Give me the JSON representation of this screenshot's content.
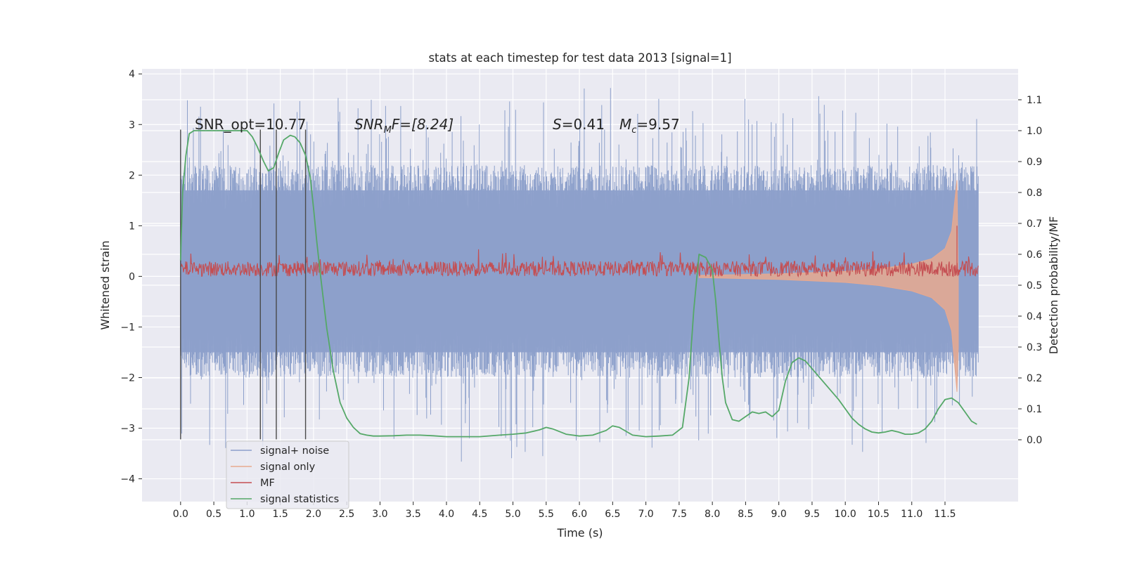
{
  "chart_data": {
    "type": "line",
    "title": "stats at each timestep for test data 2013 [signal=1]",
    "xlabel": "Time (s)",
    "ylabel_left": "Whitened strain",
    "ylabel_right": "Detection probability/MF",
    "xlim": [
      -0.58,
      12.6
    ],
    "ylim_left": [
      -4.45,
      4.1
    ],
    "ylim_right": [
      -0.2,
      1.2
    ],
    "x_ticks": [
      "0.0",
      "0.5",
      "1.0",
      "1.5",
      "2.0",
      "2.5",
      "3.0",
      "3.5",
      "4.0",
      "4.5",
      "5.0",
      "5.5",
      "6.0",
      "6.5",
      "7.0",
      "7.5",
      "8.0",
      "8.5",
      "9.0",
      "9.5",
      "10.0",
      "10.5",
      "11.0",
      "11.5"
    ],
    "y_ticks_left": [
      "−4",
      "−3",
      "−2",
      "−1",
      "0",
      "1",
      "2",
      "3",
      "4"
    ],
    "y_ticks_right": [
      "0.0",
      "0.1",
      "0.2",
      "0.3",
      "0.4",
      "0.5",
      "0.6",
      "0.7",
      "0.8",
      "0.9",
      "1.0",
      "1.1"
    ],
    "grid": true,
    "legend_position": "lower-left",
    "annotations": {
      "snr_opt": "SNR_opt=10.77",
      "snr_mf_prefix": "SNR",
      "snr_mf_sub": "M",
      "snr_mf_rest": "F=[8.24]",
      "s_sym": "S",
      "s_val": "=0.41",
      "mc_sym": "M",
      "mc_sub": "c",
      "mc_val": "=9.57"
    },
    "vertical_markers_x": [
      0.0,
      1.2,
      1.44,
      1.88
    ],
    "series": [
      {
        "name": "signal+ noise",
        "color": "#8da0cb",
        "axis": "left",
        "description_range": [
          -1.5,
          1.7
        ],
        "x_range": [
          0.0,
          12.0
        ]
      },
      {
        "name": "signal only",
        "color": "#e8a98f",
        "axis": "left",
        "x_range": [
          7.8,
          11.7
        ],
        "envelope": [
          [
            7.8,
            0.02
          ],
          [
            9.0,
            0.05
          ],
          [
            10.0,
            0.1
          ],
          [
            10.5,
            0.15
          ],
          [
            11.0,
            0.24
          ],
          [
            11.3,
            0.35
          ],
          [
            11.5,
            0.55
          ],
          [
            11.6,
            0.9
          ],
          [
            11.68,
            1.9
          ],
          [
            11.7,
            0.0
          ]
        ]
      },
      {
        "name": "MF",
        "color": "#c44e52",
        "axis": "left",
        "center": 0.15,
        "x_range": [
          0.0,
          12.0
        ]
      },
      {
        "name": "signal statistics",
        "color": "#55a868",
        "axis": "right",
        "x": [
          0.0,
          0.03,
          0.08,
          0.13,
          0.2,
          0.3,
          0.5,
          0.7,
          0.9,
          1.0,
          1.08,
          1.15,
          1.25,
          1.32,
          1.4,
          1.48,
          1.55,
          1.65,
          1.72,
          1.8,
          1.88,
          1.95,
          2.0,
          2.05,
          2.1,
          2.15,
          2.2,
          2.3,
          2.4,
          2.5,
          2.6,
          2.7,
          2.8,
          2.9,
          3.0,
          3.2,
          3.4,
          3.6,
          3.8,
          4.0,
          4.2,
          4.5,
          4.8,
          5.0,
          5.2,
          5.4,
          5.5,
          5.6,
          5.8,
          6.0,
          6.2,
          6.4,
          6.5,
          6.6,
          6.8,
          7.0,
          7.2,
          7.4,
          7.55,
          7.65,
          7.72,
          7.8,
          7.9,
          8.0,
          8.05,
          8.1,
          8.15,
          8.2,
          8.3,
          8.4,
          8.5,
          8.6,
          8.7,
          8.8,
          8.9,
          9.0,
          9.1,
          9.2,
          9.3,
          9.4,
          9.5,
          9.7,
          9.9,
          10.0,
          10.1,
          10.2,
          10.3,
          10.4,
          10.5,
          10.6,
          10.7,
          10.8,
          10.9,
          11.0,
          11.1,
          11.2,
          11.3,
          11.4,
          11.5,
          11.6,
          11.7,
          11.8,
          11.9,
          11.98
        ],
        "values": [
          0.58,
          0.8,
          0.92,
          0.99,
          1.0,
          1.0,
          1.0,
          1.0,
          1.0,
          1.0,
          0.98,
          0.95,
          0.9,
          0.87,
          0.88,
          0.93,
          0.97,
          0.985,
          0.98,
          0.96,
          0.92,
          0.85,
          0.75,
          0.64,
          0.54,
          0.45,
          0.36,
          0.22,
          0.12,
          0.07,
          0.04,
          0.02,
          0.015,
          0.012,
          0.012,
          0.013,
          0.015,
          0.015,
          0.013,
          0.01,
          0.01,
          0.01,
          0.015,
          0.018,
          0.022,
          0.032,
          0.04,
          0.035,
          0.018,
          0.012,
          0.015,
          0.03,
          0.045,
          0.04,
          0.015,
          0.01,
          0.012,
          0.015,
          0.04,
          0.2,
          0.42,
          0.6,
          0.59,
          0.55,
          0.45,
          0.32,
          0.2,
          0.12,
          0.065,
          0.06,
          0.075,
          0.09,
          0.085,
          0.09,
          0.075,
          0.095,
          0.19,
          0.25,
          0.265,
          0.255,
          0.23,
          0.18,
          0.13,
          0.1,
          0.07,
          0.05,
          0.035,
          0.025,
          0.022,
          0.025,
          0.03,
          0.025,
          0.018,
          0.018,
          0.022,
          0.035,
          0.06,
          0.1,
          0.13,
          0.135,
          0.12,
          0.09,
          0.06,
          0.05
        ]
      }
    ]
  }
}
